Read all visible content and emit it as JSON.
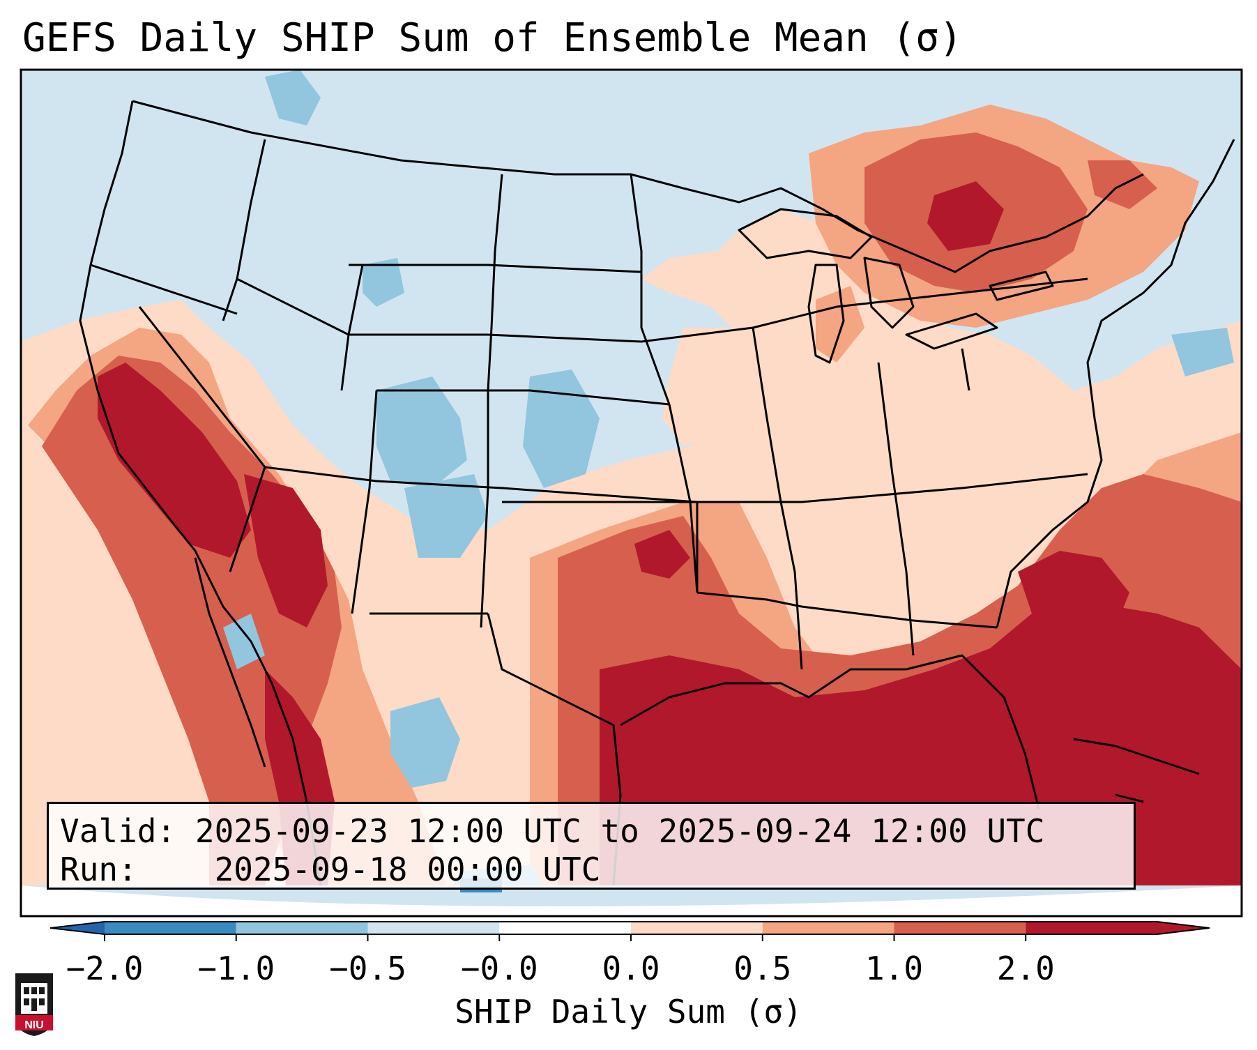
{
  "title": "GEFS Daily SHIP Sum of Ensemble Mean (σ)",
  "info": {
    "valid_label": "Valid:",
    "valid_value": "2025-09-23 12:00 UTC to 2025-09-24 12:00 UTC",
    "run_label": "Run:",
    "run_value": "2025-09-18 00:00 UTC"
  },
  "colorbar": {
    "label": "SHIP Daily Sum (σ)",
    "ticks": [
      "−2.0",
      "−1.0",
      "−0.5",
      "−0.0",
      "0.0",
      "0.5",
      "1.0",
      "2.0"
    ],
    "colors": [
      "#3b8bc2",
      "#92c5de",
      "#d1e5f0",
      "#ffffff",
      "#fddbc7",
      "#f4a582",
      "#d6604d",
      "#b2182b"
    ],
    "extend_low": "#2166ac",
    "extend_high": "#b2182b"
  },
  "logo": {
    "text": "NIU",
    "color": "#c8102e"
  },
  "colors": {
    "neutral_bg": "#d1e5f0",
    "light_blue": "#92c5de",
    "mid_blue": "#3b8bc2",
    "light_red": "#fddbc7",
    "salmon": "#f4a582",
    "red": "#d6604d",
    "dark_red": "#b2182b"
  }
}
